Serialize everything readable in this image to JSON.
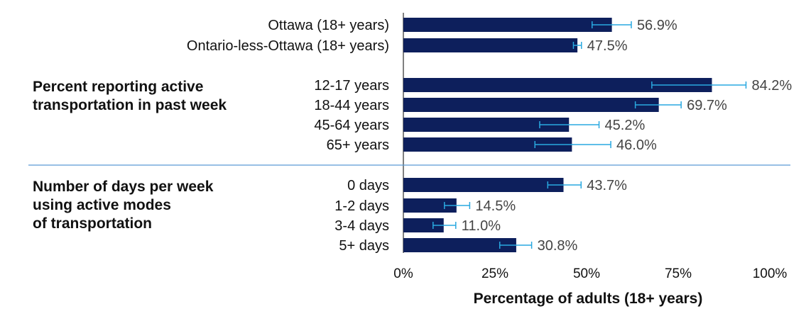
{
  "chart_data": {
    "type": "bar",
    "orientation": "horizontal",
    "xlabel": "Percentage of adults (18+ years)",
    "xlim": [
      0,
      100
    ],
    "xticks": [
      "0%",
      "25%",
      "50%",
      "75%",
      "100%"
    ],
    "xtick_values": [
      0,
      25,
      50,
      75,
      100
    ],
    "grid": false,
    "bar_color": "#0d1f5c",
    "error_bar_color": "#29a8e0",
    "divider_color": "#5b9bd5",
    "groups": [
      {
        "label_lines": [],
        "categories": [
          "Ottawa (18+ years)",
          "Ontario-less-Ottawa (18+ years)"
        ],
        "values": [
          56.9,
          47.5
        ],
        "value_labels": [
          "56.9%",
          "47.5%"
        ],
        "error_low": [
          51.5,
          46.4
        ],
        "error_high": [
          62.2,
          48.6
        ]
      },
      {
        "label_lines": [
          "Percent reporting active",
          "transportation in past week"
        ],
        "categories": [
          "12-17 years",
          "18-44 years",
          "45-64 years",
          "65+ years"
        ],
        "values": [
          84.2,
          69.7,
          45.2,
          46.0
        ],
        "value_labels": [
          "84.2%",
          "69.7%",
          "45.2%",
          "46.0%"
        ],
        "error_low": [
          67.8,
          63.3,
          37.2,
          35.9
        ],
        "error_high": [
          93.5,
          75.8,
          53.4,
          56.6
        ]
      },
      {
        "label_lines": [
          "Number of days per week",
          "using active modes",
          "of transportation"
        ],
        "categories": [
          "0 days",
          "1-2 days",
          "3-4 days",
          "5+ days"
        ],
        "values": [
          43.7,
          14.5,
          11.0,
          30.8
        ],
        "value_labels": [
          "43.7%",
          "14.5%",
          "11.0%",
          "30.8%"
        ],
        "error_low": [
          39.4,
          11.2,
          8.1,
          26.3
        ],
        "error_high": [
          48.5,
          18.1,
          14.3,
          35.0
        ]
      }
    ]
  }
}
